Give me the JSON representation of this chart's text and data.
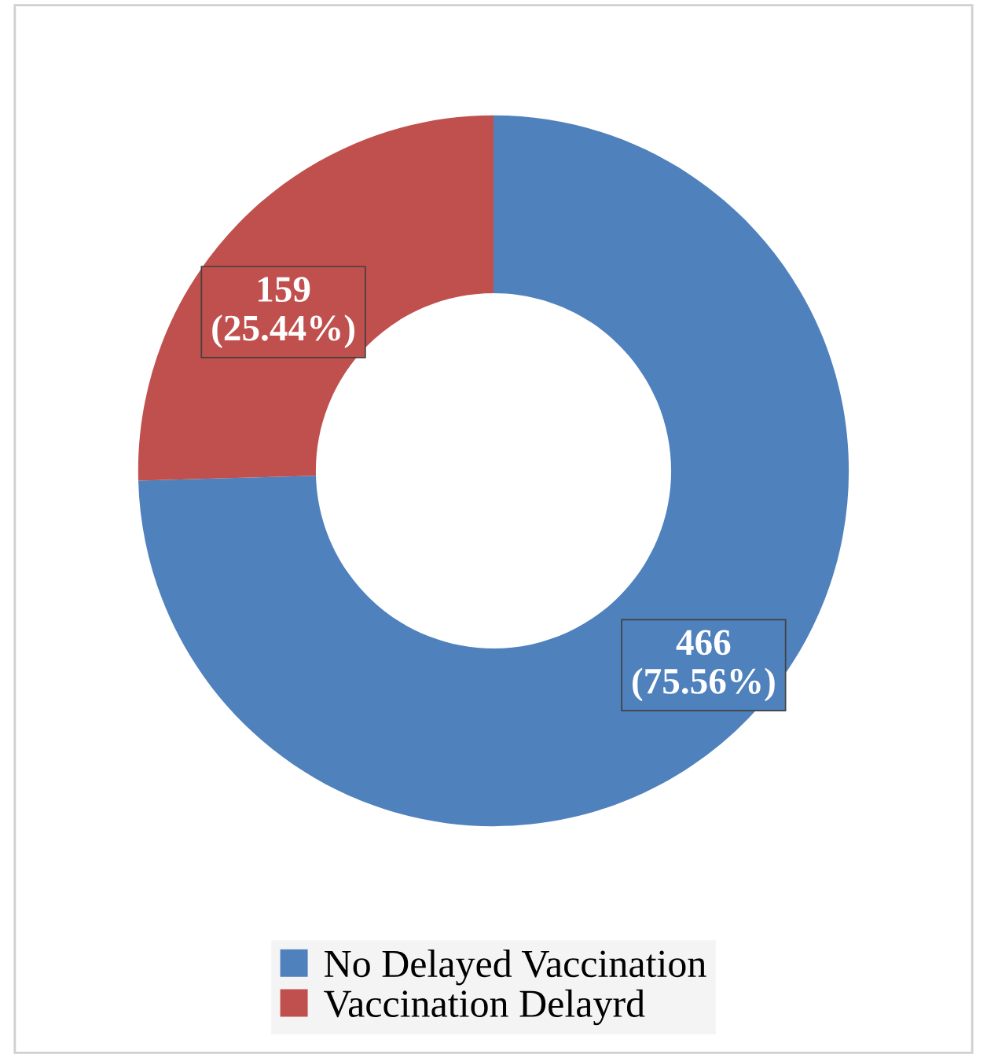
{
  "chart_data": {
    "type": "donut",
    "categories": [
      "No Delayed Vaccination",
      "Vaccination Delayrd"
    ],
    "values": [
      466,
      159
    ],
    "colors": [
      "#4f81bd",
      "#c0504d"
    ],
    "value_labels": [
      "466\n(75.56%)",
      "159\n(25.44%)"
    ],
    "legend": "bottom"
  }
}
